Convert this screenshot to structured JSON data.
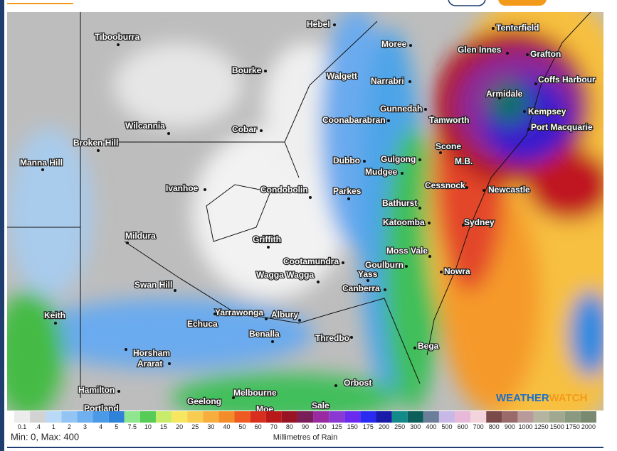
{
  "map": {
    "cities": [
      "Tibooburra",
      "Hebel",
      "Moree",
      "Tenterfield",
      "Glen Innes",
      "Grafton",
      "Bourke",
      "Walgett",
      "Narrabri",
      "Coffs Harbour",
      "Armidale",
      "Gunnedah",
      "Kempsey",
      "Coonabarabran",
      "Tamworth",
      "Wilcannia",
      "Cobar",
      "Port Macquarie",
      "Broken Hill",
      "Scone",
      "Manna Hill",
      "Dubbo",
      "Gulgong",
      "M.B.",
      "Mudgee",
      "Ivanhoe",
      "Condobolin",
      "Cessnock",
      "Newcastle",
      "Parkes",
      "Bathurst",
      "Katoomba",
      "Sydney",
      "Mildura",
      "Griffith",
      "Moss Vale",
      "Cootamundra",
      "Goulburn",
      "Swan Hill",
      "Wagga Wagga",
      "Yass",
      "Nowra",
      "Canberra",
      "Keith",
      "Yarrawonga",
      "Albury",
      "Echuca",
      "Benalla",
      "Thredbo",
      "Horsham",
      "Bega",
      "Ararat",
      "Orbost",
      "Hamilton",
      "Melbourne",
      "Geelong",
      "Portland",
      "Moe",
      "Sale"
    ]
  },
  "logo": {
    "part1": "WEATHER",
    "part2": "WATCH"
  },
  "legend": {
    "labels": [
      "0.1",
      ".4",
      "1",
      "2",
      "3",
      "4",
      "5",
      "7.5",
      "10",
      "15",
      "20",
      "25",
      "30",
      "40",
      "50",
      "60",
      "70",
      "80",
      "90",
      "100",
      "125",
      "150",
      "175",
      "200",
      "250",
      "300",
      "400",
      "500",
      "600",
      "700",
      "800",
      "900",
      "1000",
      "1250",
      "1500",
      "1750",
      "2000"
    ],
    "range": "Min: 0, Max: 400",
    "title": "Millimetres of Rain"
  }
}
